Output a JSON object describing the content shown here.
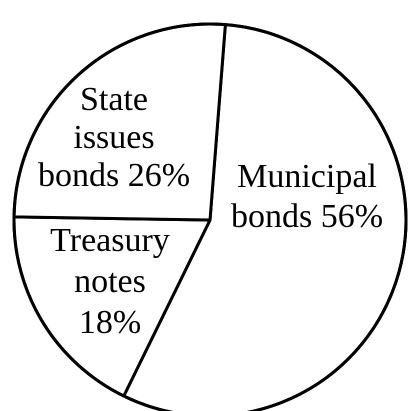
{
  "chart_data": {
    "type": "pie",
    "title": "",
    "slices": [
      {
        "name": "Municipal bonds",
        "value": 56,
        "label_lines": [
          "Municipal",
          "bonds 56%"
        ]
      },
      {
        "name": "Treasury notes",
        "value": 18,
        "label_lines": [
          "Treasury",
          "notes",
          "18%"
        ]
      },
      {
        "name": "State issues bonds",
        "value": 26,
        "label_lines": [
          "State",
          "issues",
          "bonds 26%"
        ]
      }
    ],
    "colors": {
      "fill": "#ffffff",
      "stroke": "#000000"
    },
    "legend": "none"
  }
}
